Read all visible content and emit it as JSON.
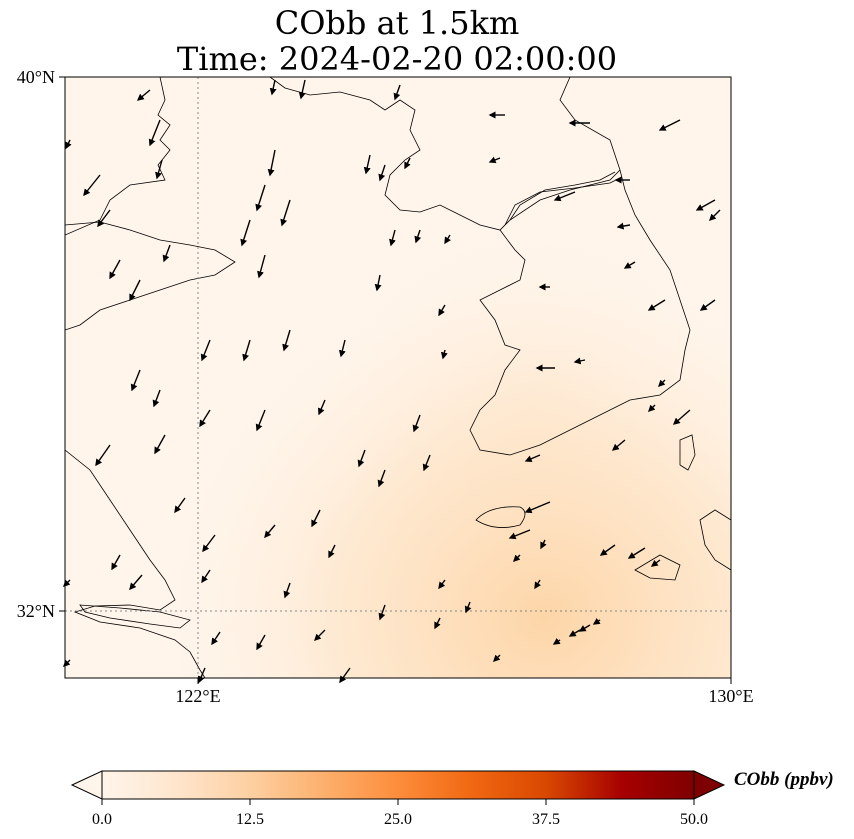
{
  "title_line1": "CObb at 1.5km",
  "title_line2": "Time: 2024-02-20 02:00:00",
  "lat_labels": [
    "40°N",
    "32°N"
  ],
  "lon_labels": [
    "122°E",
    "130°E"
  ],
  "colorbar": {
    "label": "CObb (ppbv)",
    "ticks": [
      "0.0",
      "12.5",
      "25.0",
      "37.5",
      "50.0"
    ],
    "min": 0,
    "max": 50,
    "extend": "both",
    "colors": [
      "#fff5eb",
      "#fee6ce",
      "#fdd0a2",
      "#fdae6b",
      "#fd8d3c",
      "#f16913",
      "#d94801",
      "#a60000",
      "#7f0000"
    ]
  },
  "chart_data": {
    "type": "heatmap",
    "title": "CObb at 1.5km\nTime: 2024-02-20 02:00:00",
    "extent": {
      "lon": [
        120,
        130
      ],
      "lat": [
        31,
        40
      ]
    },
    "gridlines": {
      "lon": [
        122
      ],
      "lat": [
        32
      ]
    },
    "units": "ppbv",
    "field_range": [
      0,
      15
    ],
    "wind_arrows": [
      [
        160,
        120,
        -10,
        25
      ],
      [
        162,
        160,
        -5,
        18
      ],
      [
        275,
        150,
        -5,
        25
      ],
      [
        265,
        185,
        -8,
        25
      ],
      [
        290,
        200,
        -8,
        25
      ],
      [
        250,
        220,
        -8,
        25
      ],
      [
        265,
        255,
        -6,
        22
      ],
      [
        305,
        80,
        -4,
        18
      ],
      [
        275,
        80,
        -3,
        14
      ],
      [
        400,
        85,
        -5,
        14
      ],
      [
        370,
        155,
        -4,
        18
      ],
      [
        385,
        165,
        -5,
        15
      ],
      [
        410,
        158,
        -5,
        10
      ],
      [
        395,
        230,
        -4,
        15
      ],
      [
        420,
        230,
        -4,
        12
      ],
      [
        380,
        275,
        -3,
        15
      ],
      [
        445,
        305,
        -6,
        10
      ],
      [
        450,
        235,
        -5,
        8
      ],
      [
        100,
        175,
        -16,
        20
      ],
      [
        110,
        210,
        -12,
        16
      ],
      [
        70,
        140,
        -4,
        8
      ],
      [
        120,
        260,
        -10,
        18
      ],
      [
        140,
        280,
        -10,
        20
      ],
      [
        170,
        245,
        -6,
        16
      ],
      [
        210,
        340,
        -8,
        20
      ],
      [
        250,
        340,
        -6,
        20
      ],
      [
        290,
        330,
        -6,
        20
      ],
      [
        345,
        340,
        -4,
        16
      ],
      [
        445,
        350,
        -2,
        8
      ],
      [
        140,
        370,
        -8,
        20
      ],
      [
        160,
        390,
        -6,
        16
      ],
      [
        210,
        410,
        -10,
        16
      ],
      [
        265,
        410,
        -8,
        20
      ],
      [
        325,
        400,
        -6,
        14
      ],
      [
        420,
        415,
        -6,
        16
      ],
      [
        110,
        445,
        -14,
        20
      ],
      [
        165,
        435,
        -10,
        18
      ],
      [
        365,
        450,
        -6,
        16
      ],
      [
        385,
        470,
        -6,
        16
      ],
      [
        430,
        455,
        -6,
        15
      ],
      [
        185,
        498,
        -10,
        14
      ],
      [
        215,
        535,
        -12,
        16
      ],
      [
        275,
        525,
        -10,
        12
      ],
      [
        320,
        510,
        -8,
        16
      ],
      [
        120,
        555,
        -8,
        14
      ],
      [
        142,
        575,
        -12,
        14
      ],
      [
        210,
        570,
        -8,
        12
      ],
      [
        290,
        583,
        -5,
        14
      ],
      [
        335,
        545,
        -6,
        12
      ],
      [
        445,
        580,
        -6,
        8
      ],
      [
        470,
        602,
        -4,
        10
      ],
      [
        385,
        605,
        -5,
        14
      ],
      [
        440,
        618,
        -5,
        10
      ],
      [
        540,
        580,
        -5,
        8
      ],
      [
        545,
        540,
        -4,
        8
      ],
      [
        520,
        555,
        -6,
        6
      ],
      [
        220,
        632,
        -8,
        12
      ],
      [
        265,
        635,
        -8,
        14
      ],
      [
        325,
        630,
        -10,
        10
      ],
      [
        350,
        668,
        -10,
        14
      ],
      [
        205,
        668,
        -6,
        14
      ],
      [
        70,
        660,
        -6,
        6
      ],
      [
        70,
        580,
        -6,
        6
      ],
      [
        505,
        115,
        -15,
        0
      ],
      [
        590,
        123,
        -20,
        0
      ],
      [
        680,
        120,
        -20,
        10
      ],
      [
        500,
        158,
        -10,
        4
      ],
      [
        575,
        192,
        -20,
        8
      ],
      [
        630,
        180,
        -14,
        0
      ],
      [
        630,
        225,
        -12,
        2
      ],
      [
        635,
        262,
        -10,
        6
      ],
      [
        665,
        300,
        -16,
        10
      ],
      [
        715,
        300,
        -14,
        10
      ],
      [
        715,
        200,
        -18,
        10
      ],
      [
        720,
        210,
        -10,
        10
      ],
      [
        550,
        287,
        -10,
        0
      ],
      [
        555,
        368,
        -18,
        0
      ],
      [
        585,
        360,
        -10,
        2
      ],
      [
        665,
        380,
        -6,
        6
      ],
      [
        655,
        405,
        -6,
        6
      ],
      [
        690,
        410,
        -16,
        14
      ],
      [
        625,
        440,
        -12,
        10
      ],
      [
        540,
        455,
        -14,
        6
      ],
      [
        550,
        502,
        -24,
        10
      ],
      [
        530,
        530,
        -20,
        8
      ],
      [
        615,
        545,
        -14,
        10
      ],
      [
        645,
        548,
        -16,
        10
      ],
      [
        660,
        560,
        -8,
        6
      ],
      [
        580,
        630,
        -10,
        6
      ],
      [
        590,
        625,
        -10,
        6
      ],
      [
        600,
        620,
        -6,
        4
      ],
      [
        560,
        640,
        -6,
        4
      ],
      [
        500,
        655,
        -6,
        6
      ],
      [
        150,
        90,
        -12,
        10
      ]
    ]
  }
}
